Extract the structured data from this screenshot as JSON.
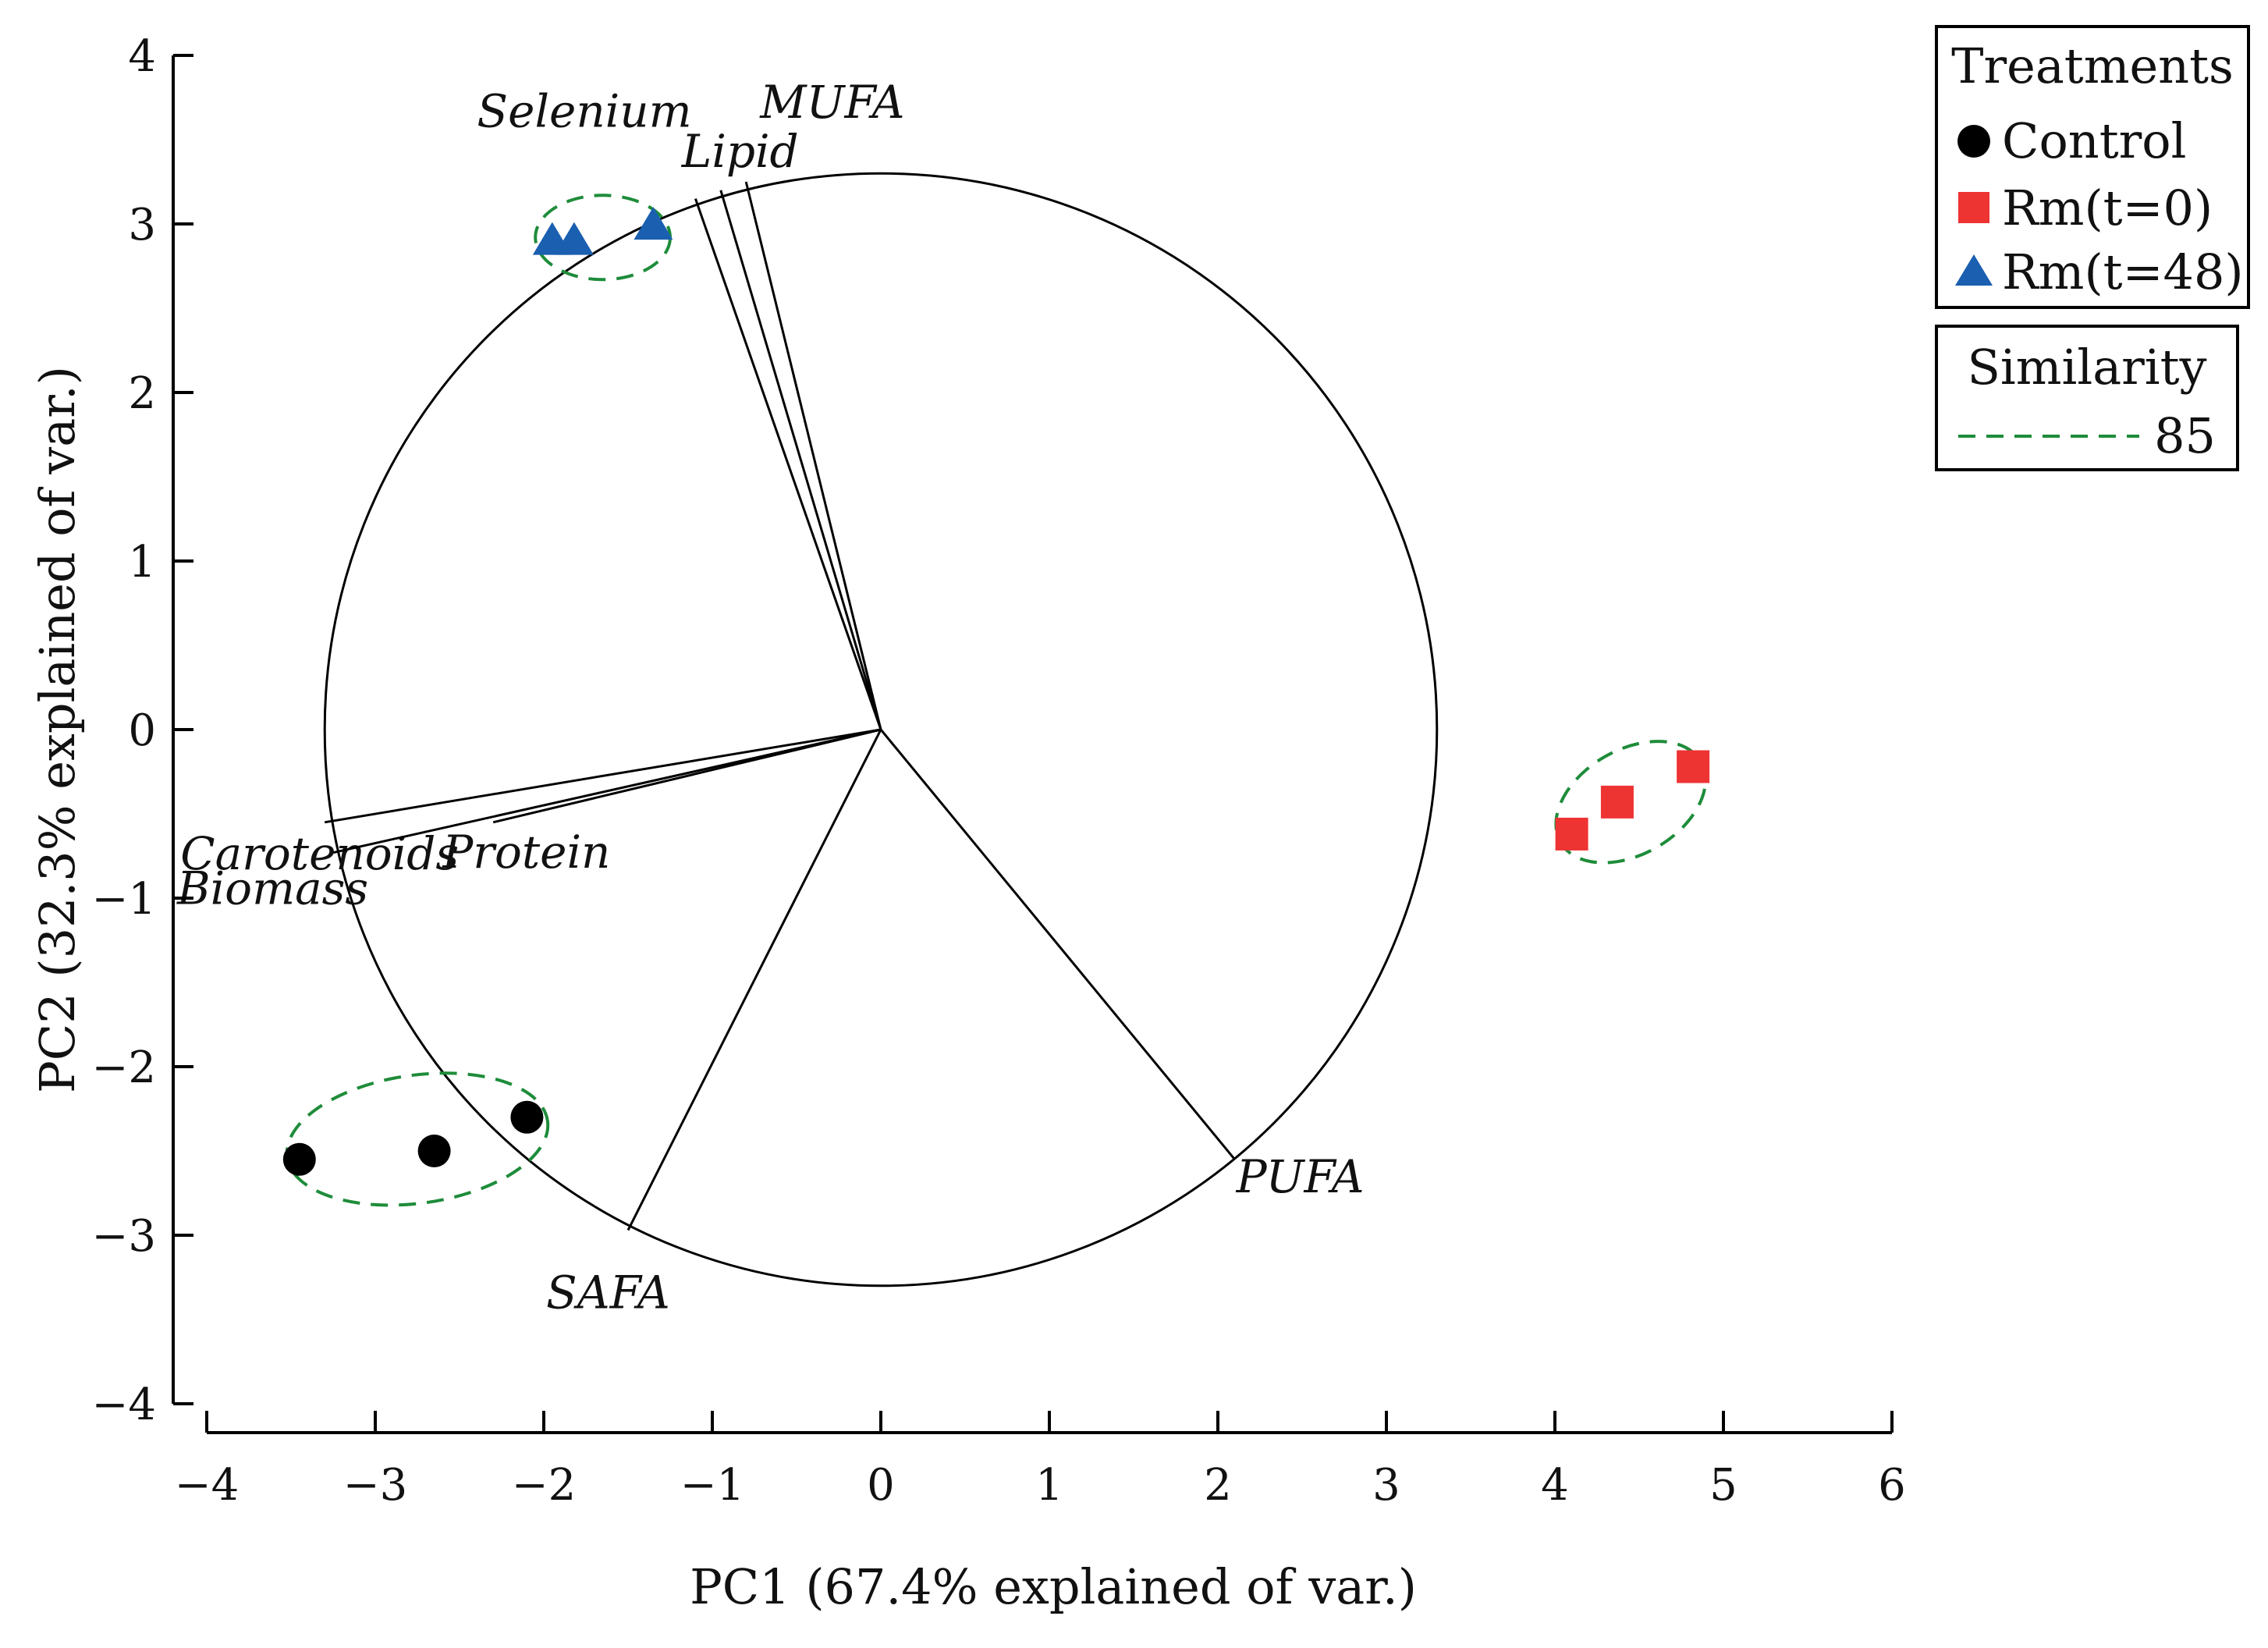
{
  "chart_data": {
    "type": "scatter",
    "subtype": "pca-biplot",
    "xlabel": "PC1 (67.4% explained of var.)",
    "ylabel": "PC2 (32.3% explained of var.)",
    "xlim": [
      -4,
      6
    ],
    "ylim": [
      -4,
      4
    ],
    "x_ticks": [
      "−4",
      "−3",
      "−2",
      "−1",
      "0",
      "1",
      "2",
      "3",
      "4",
      "5",
      "6"
    ],
    "y_ticks": [
      "4",
      "3",
      "2",
      "1",
      "0",
      "−1",
      "−2",
      "−3",
      "−4"
    ],
    "grid": false,
    "correlation_circle": {
      "center": [
        0,
        0
      ],
      "radius": 3.3
    },
    "loadings": [
      {
        "name": "MUFA",
        "x": -0.8,
        "y": 3.25
      },
      {
        "name": "Selenium",
        "x": -1.1,
        "y": 3.15
      },
      {
        "name": "Lipid",
        "x": -0.95,
        "y": 3.2
      },
      {
        "name": "Carotenoids",
        "x": -3.3,
        "y": -0.55
      },
      {
        "name": "Biomass",
        "x": -3.25,
        "y": -0.73
      },
      {
        "name": "Protein",
        "x": -2.3,
        "y": -0.55
      },
      {
        "name": "SAFA",
        "x": -1.5,
        "y": -2.97
      },
      {
        "name": "PUFA",
        "x": 2.1,
        "y": -2.55
      }
    ],
    "series": [
      {
        "name": "Control",
        "marker": "circle",
        "color": "#000000",
        "points": [
          [
            -3.45,
            -2.55
          ],
          [
            -2.65,
            -2.5
          ],
          [
            -2.1,
            -2.3
          ]
        ]
      },
      {
        "name": "Rm(t=0)",
        "marker": "square",
        "color": "#ee3333",
        "points": [
          [
            4.1,
            -0.62
          ],
          [
            4.37,
            -0.43
          ],
          [
            4.82,
            -0.22
          ]
        ]
      },
      {
        "name": "Rm(t=48)",
        "marker": "triangle",
        "color": "#1a5fb0",
        "points": [
          [
            -1.95,
            2.9
          ],
          [
            -1.82,
            2.9
          ],
          [
            -1.35,
            2.99
          ]
        ]
      }
    ],
    "similarity_ellipses": [
      {
        "group": "Control",
        "cx": -2.75,
        "cy": -2.43,
        "rx": 0.78,
        "ry": 0.38,
        "angle_deg": 8
      },
      {
        "group": "Rm(t=0)",
        "cx": 4.45,
        "cy": -0.43,
        "rx": 0.48,
        "ry": 0.31,
        "angle_deg": 30
      },
      {
        "group": "Rm(t=48)",
        "cx": -1.65,
        "cy": 2.92,
        "rx": 0.4,
        "ry": 0.25,
        "angle_deg": 0
      }
    ],
    "legend": {
      "position": "top-right",
      "title": "Treatments",
      "entries": [
        "Control",
        "Rm(t=0)",
        "Rm(t=48)"
      ]
    },
    "similarity_legend": {
      "title": "Similarity",
      "value": "85",
      "color": "#1e8c3a"
    }
  }
}
